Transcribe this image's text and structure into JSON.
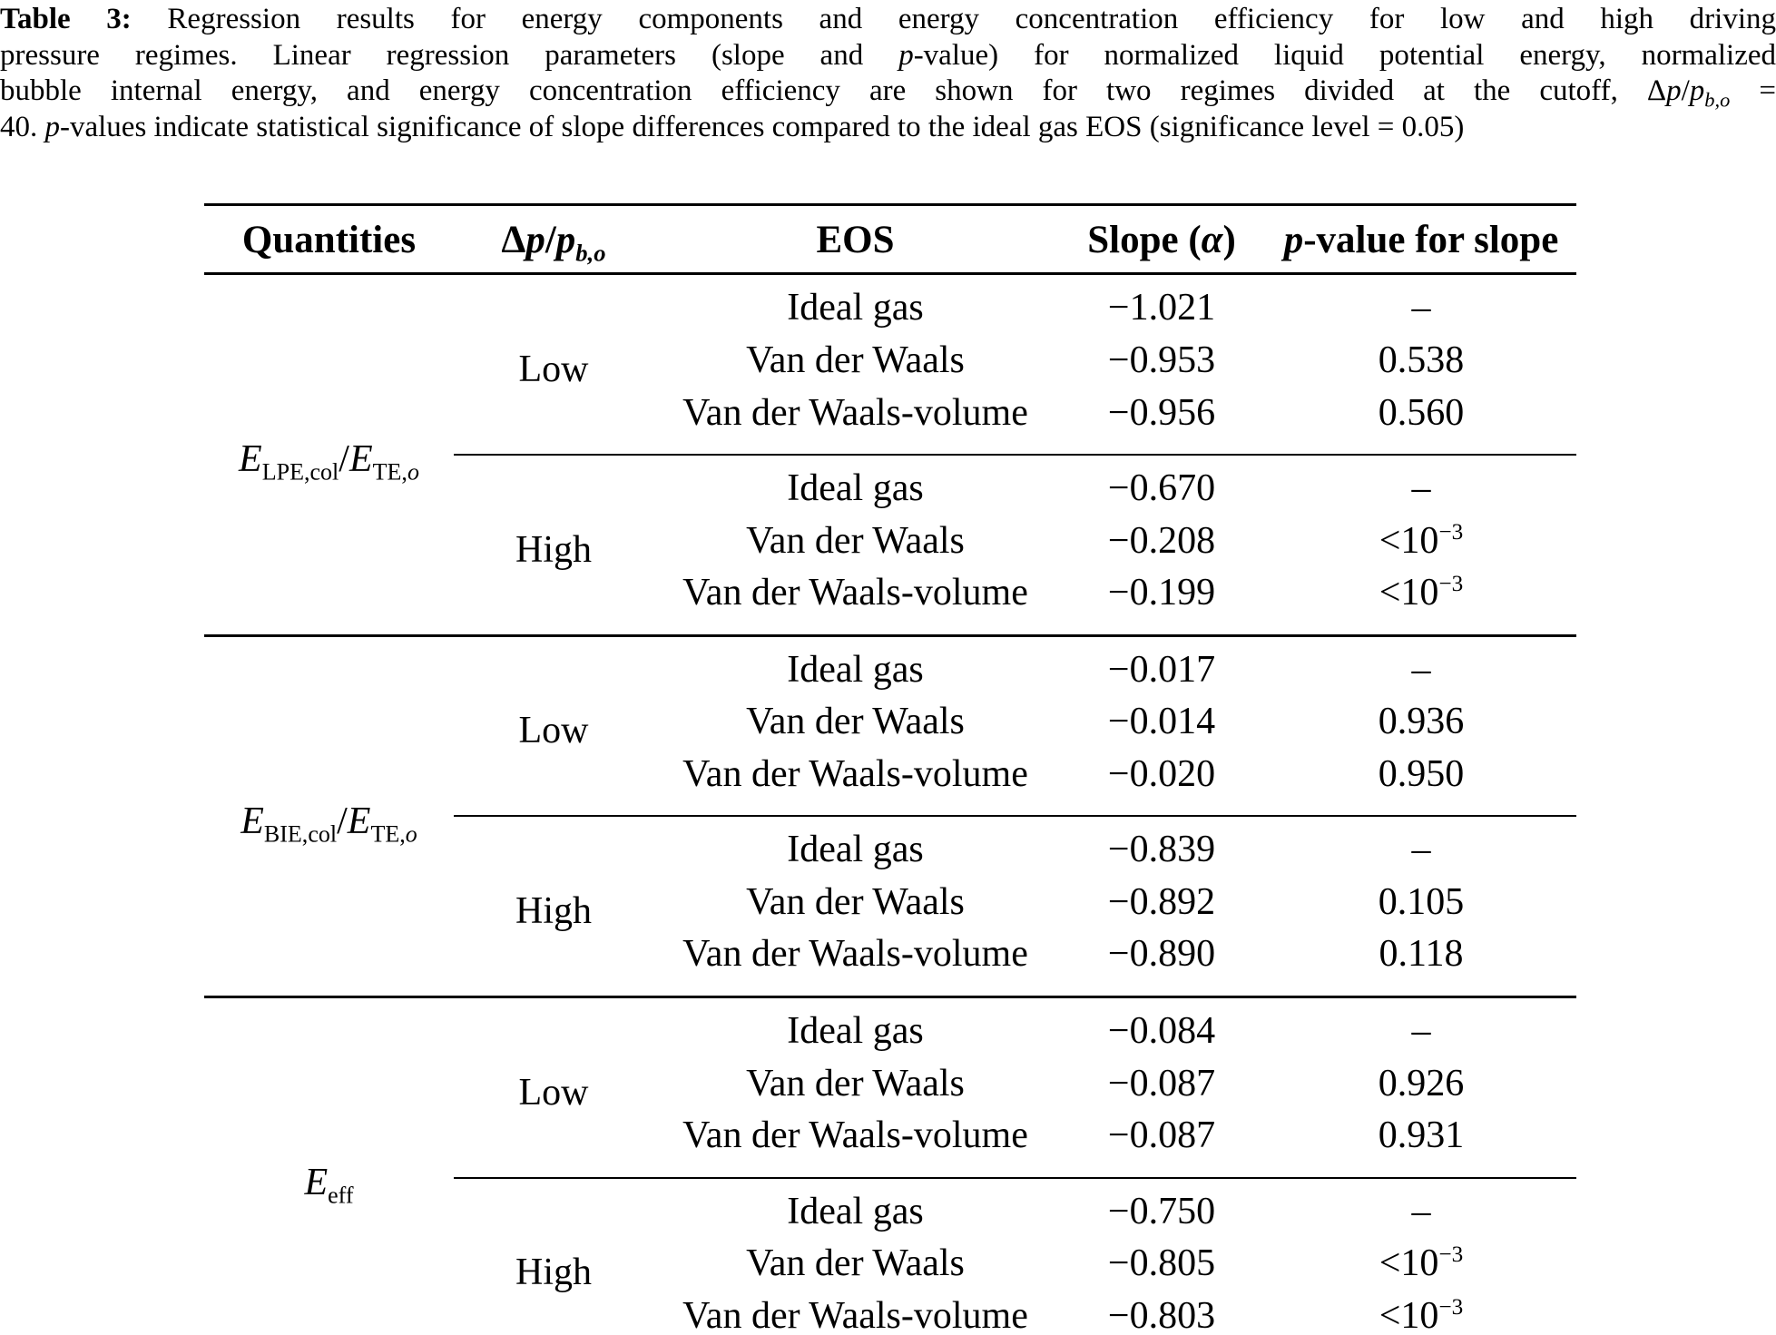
{
  "caption": {
    "line1_bold": "Table 3:",
    "line1_rest": "Regression results for energy components and energy concentration efficiency for low and high driving",
    "line2_a": "pressure regimes. Linear regression parameters (slope and",
    "line2_p": "p",
    "line2_b": "-value) for normalized liquid potential energy, normalized",
    "line3_a": "bubble internal energy, and energy concentration efficiency are shown for two regimes divided at the cutoff,",
    "line3_delta": "Δ",
    "line3_p1": "p",
    "line3_slash": "/",
    "line3_p2": "p",
    "line3_sub": "b,o",
    "line3_eq": "=",
    "line4_a": "40.",
    "line4_p": "p",
    "line4_b": "-values indicate statistical significance of slope differences compared to the ideal gas EOS (significance level = 0.05)"
  },
  "table": {
    "headers": {
      "quantities": "Quantities",
      "dp_delta": "Δ",
      "dp_p1": "p",
      "dp_slash": "/",
      "dp_p2": "p",
      "dp_sub": "b,o",
      "eos": "EOS",
      "slope_pre": "Slope (",
      "slope_alpha": "α",
      "slope_post": ")",
      "pvalue_p": "p",
      "pvalue_rest": "-value for slope"
    },
    "groups": [
      {
        "quantity": {
          "base1": "E",
          "sub1": "LPE,col",
          "slash": "/",
          "base2": "E",
          "sub2": "TE,",
          "sub2_it": "o"
        },
        "blocks": [
          {
            "regime": "Low",
            "rows": [
              {
                "eos": "Ideal gas",
                "slope": "−1.021",
                "pvalue": "–",
                "pvalue_sup": ""
              },
              {
                "eos": "Van der Waals",
                "slope": "−0.953",
                "pvalue": "0.538",
                "pvalue_sup": ""
              },
              {
                "eos": "Van der Waals-volume",
                "slope": "−0.956",
                "pvalue": "0.560",
                "pvalue_sup": ""
              }
            ]
          },
          {
            "regime": "High",
            "rows": [
              {
                "eos": "Ideal gas",
                "slope": "−0.670",
                "pvalue": "–",
                "pvalue_sup": ""
              },
              {
                "eos": "Van der Waals",
                "slope": "−0.208",
                "pvalue": "<10",
                "pvalue_sup": "−3"
              },
              {
                "eos": "Van der Waals-volume",
                "slope": "−0.199",
                "pvalue": "<10",
                "pvalue_sup": "−3"
              }
            ]
          }
        ]
      },
      {
        "quantity": {
          "base1": "E",
          "sub1": "BIE,col",
          "slash": "/",
          "base2": "E",
          "sub2": "TE,",
          "sub2_it": "o"
        },
        "blocks": [
          {
            "regime": "Low",
            "rows": [
              {
                "eos": "Ideal gas",
                "slope": "−0.017",
                "pvalue": "–",
                "pvalue_sup": ""
              },
              {
                "eos": "Van der Waals",
                "slope": "−0.014",
                "pvalue": "0.936",
                "pvalue_sup": ""
              },
              {
                "eos": "Van der Waals-volume",
                "slope": "−0.020",
                "pvalue": "0.950",
                "pvalue_sup": ""
              }
            ]
          },
          {
            "regime": "High",
            "rows": [
              {
                "eos": "Ideal gas",
                "slope": "−0.839",
                "pvalue": "–",
                "pvalue_sup": ""
              },
              {
                "eos": "Van der Waals",
                "slope": "−0.892",
                "pvalue": "0.105",
                "pvalue_sup": ""
              },
              {
                "eos": "Van der Waals-volume",
                "slope": "−0.890",
                "pvalue": "0.118",
                "pvalue_sup": ""
              }
            ]
          }
        ]
      },
      {
        "quantity": {
          "base1": "E",
          "sub1": "eff"
        },
        "blocks": [
          {
            "regime": "Low",
            "rows": [
              {
                "eos": "Ideal gas",
                "slope": "−0.084",
                "pvalue": "–",
                "pvalue_sup": ""
              },
              {
                "eos": "Van der Waals",
                "slope": "−0.087",
                "pvalue": "0.926",
                "pvalue_sup": ""
              },
              {
                "eos": "Van der Waals-volume",
                "slope": "−0.087",
                "pvalue": "0.931",
                "pvalue_sup": ""
              }
            ]
          },
          {
            "regime": "High",
            "rows": [
              {
                "eos": "Ideal gas",
                "slope": "−0.750",
                "pvalue": "–",
                "pvalue_sup": ""
              },
              {
                "eos": "Van der Waals",
                "slope": "−0.805",
                "pvalue": "<10",
                "pvalue_sup": "−3"
              },
              {
                "eos": "Van der Waals-volume",
                "slope": "−0.803",
                "pvalue": "<10",
                "pvalue_sup": "−3"
              }
            ]
          }
        ]
      }
    ]
  }
}
